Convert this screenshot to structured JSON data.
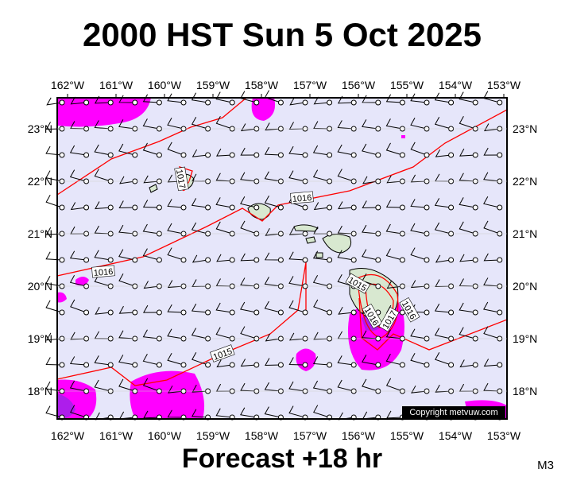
{
  "title": "2000 HST Sun 5 Oct 2025",
  "footer": "Forecast +18 hr",
  "model_label": "M3",
  "copyright": "Copyright metvuw.com",
  "lon_labels": [
    "162°W",
    "161°W",
    "160°W",
    "159°W",
    "158°W",
    "157°W",
    "156°W",
    "155°W",
    "154°W",
    "153°W"
  ],
  "lat_labels": [
    "23°N",
    "22°N",
    "21°N",
    "20°N",
    "19°N",
    "18°N"
  ],
  "isobar_labels": [
    "1017",
    "1016",
    "1016",
    "1015",
    "1015",
    "1016",
    "1017",
    "1016"
  ]
}
